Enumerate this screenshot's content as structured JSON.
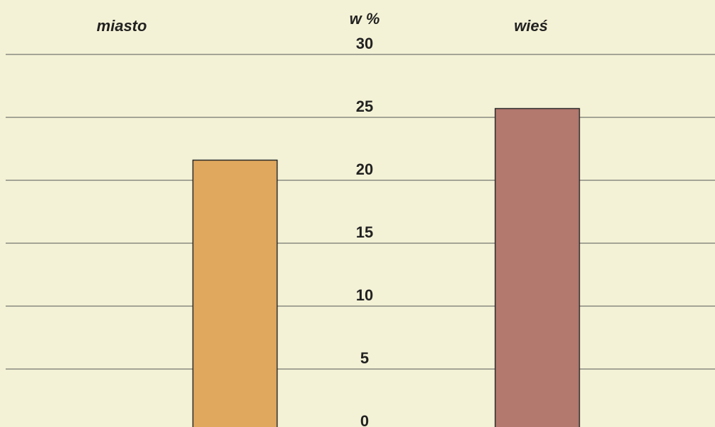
{
  "chart_data": {
    "type": "bar",
    "axis_label": "w %",
    "categories": [
      "miasto",
      "wieś"
    ],
    "values": [
      21.6,
      25.7
    ],
    "colors": [
      "#e0a85e",
      "#b3786e"
    ],
    "ylim": [
      0,
      30
    ],
    "yticks": [
      0,
      5,
      10,
      15,
      20,
      25,
      30
    ],
    "grid": true
  }
}
